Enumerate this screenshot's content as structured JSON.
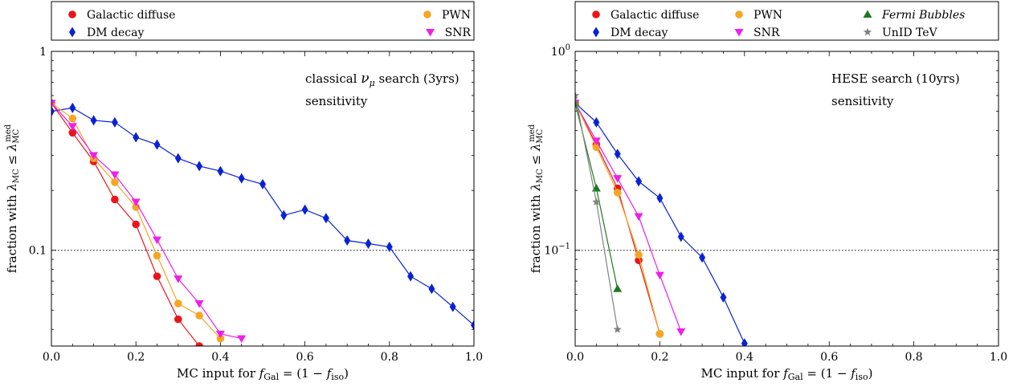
{
  "chart_data": [
    {
      "type": "line",
      "yscale": "log",
      "xlim": [
        0,
        1
      ],
      "ylim": [
        0.033,
        1
      ],
      "xticks": [
        "0.0",
        "0.2",
        "0.4",
        "0.6",
        "0.8",
        "1.0"
      ],
      "yticks": [
        "0.1",
        "1"
      ],
      "xlabel_pre": "MC input for ",
      "xlabel_math": "f_Gal = (1 − f_iso)",
      "ylabel_pre": "fraction with ",
      "ylabel_math": "λ_MC ≤ λ_MC^med",
      "annotation_line1_pre": "classical ",
      "annotation_line1_math": "ν_μ",
      "annotation_line1_post": " search (3yrs)",
      "annotation_line2": "sensitivity",
      "reference_line": 0.1,
      "legend": [
        "Galactic diffuse",
        "DM decay",
        "PWN",
        "SNR"
      ],
      "series": [
        {
          "name": "Galactic diffuse",
          "color": "#e8161b",
          "marker": "circle",
          "x": [
            0.0,
            0.05,
            0.1,
            0.15,
            0.2,
            0.25,
            0.3,
            0.35
          ],
          "y": [
            0.55,
            0.39,
            0.28,
            0.18,
            0.135,
            0.074,
            0.045,
            0.033
          ]
        },
        {
          "name": "DM decay",
          "color": "#0a22d6",
          "marker": "diamond",
          "x": [
            0.0,
            0.05,
            0.1,
            0.15,
            0.2,
            0.25,
            0.3,
            0.35,
            0.4,
            0.45,
            0.5,
            0.55,
            0.6,
            0.65,
            0.7,
            0.75,
            0.8,
            0.85,
            0.9,
            0.95,
            1.0
          ],
          "y": [
            0.5,
            0.52,
            0.45,
            0.44,
            0.37,
            0.34,
            0.29,
            0.265,
            0.25,
            0.23,
            0.215,
            0.15,
            0.16,
            0.145,
            0.112,
            0.108,
            0.104,
            0.074,
            0.064,
            0.052,
            0.042
          ]
        },
        {
          "name": "PWN",
          "color": "#f5a623",
          "marker": "circle",
          "x": [
            0.0,
            0.05,
            0.1,
            0.15,
            0.2,
            0.25,
            0.3,
            0.35,
            0.4
          ],
          "y": [
            0.55,
            0.46,
            0.29,
            0.22,
            0.165,
            0.094,
            0.054,
            0.047,
            0.036
          ]
        },
        {
          "name": "SNR",
          "color": "#ee1fe8",
          "marker": "triangle-down",
          "x": [
            0.0,
            0.05,
            0.1,
            0.15,
            0.2,
            0.25,
            0.3,
            0.35,
            0.4,
            0.45
          ],
          "y": [
            0.55,
            0.42,
            0.3,
            0.24,
            0.175,
            0.113,
            0.072,
            0.054,
            0.038,
            0.036
          ]
        }
      ]
    },
    {
      "type": "line",
      "yscale": "log",
      "xlim": [
        0,
        1
      ],
      "ylim": [
        0.033,
        1
      ],
      "xticks": [
        "0.0",
        "0.2",
        "0.4",
        "0.6",
        "0.8",
        "1.0"
      ],
      "yticks": [
        "10^−1",
        "10^0"
      ],
      "xlabel_pre": "MC input for ",
      "xlabel_math": "f_Gal = (1 − f_iso)",
      "ylabel_pre": "fraction with ",
      "ylabel_math": "λ_MC ≤ λ_MC^med",
      "annotation_line1": "HESE search (10yrs)",
      "annotation_line2": "sensitivity",
      "reference_line": 0.1,
      "legend": [
        "Galactic diffuse",
        "DM decay",
        "PWN",
        "SNR",
        "Fermi Bubbles",
        "UnID TeV"
      ],
      "series": [
        {
          "name": "Galactic diffuse",
          "color": "#e8161b",
          "marker": "circle",
          "x": [
            0.0,
            0.05,
            0.1,
            0.15,
            0.2
          ],
          "y": [
            0.55,
            0.34,
            0.205,
            0.089,
            0.038
          ]
        },
        {
          "name": "DM decay",
          "color": "#0a22d6",
          "marker": "diamond",
          "x": [
            0.0,
            0.05,
            0.1,
            0.15,
            0.2,
            0.25,
            0.3,
            0.35,
            0.4
          ],
          "y": [
            0.55,
            0.44,
            0.305,
            0.222,
            0.183,
            0.117,
            0.092,
            0.058,
            0.034
          ]
        },
        {
          "name": "PWN",
          "color": "#f5a623",
          "marker": "circle",
          "x": [
            0.0,
            0.05,
            0.1,
            0.15,
            0.2
          ],
          "y": [
            0.55,
            0.33,
            0.195,
            0.095,
            0.038
          ]
        },
        {
          "name": "SNR",
          "color": "#ee1fe8",
          "marker": "triangle-down",
          "x": [
            0.0,
            0.05,
            0.1,
            0.15,
            0.2,
            0.25
          ],
          "y": [
            0.55,
            0.355,
            0.23,
            0.148,
            0.075,
            0.039
          ]
        },
        {
          "name": "Fermi Bubbles",
          "color": "#1f7a1f",
          "marker": "triangle-up",
          "x": [
            0.0,
            0.05,
            0.1
          ],
          "y": [
            0.55,
            0.205,
            0.064
          ]
        },
        {
          "name": "UnID TeV",
          "color": "#808080",
          "marker": "star",
          "x": [
            0.0,
            0.05,
            0.1
          ],
          "y": [
            0.6,
            0.175,
            0.04
          ]
        }
      ]
    }
  ]
}
